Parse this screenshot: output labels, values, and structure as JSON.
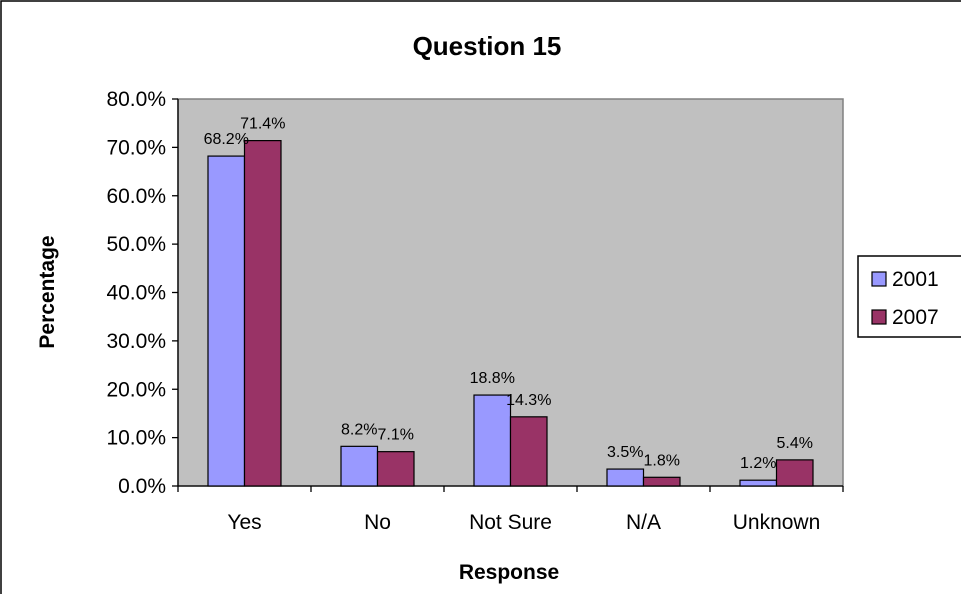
{
  "chart_data": {
    "type": "bar",
    "title": "Question 15",
    "xlabel": "Response",
    "ylabel": "Percentage",
    "categories": [
      "Yes",
      "No",
      "Not Sure",
      "N/A",
      "Unknown"
    ],
    "series": [
      {
        "name": "2001",
        "values": [
          68.2,
          8.2,
          18.8,
          3.5,
          1.2
        ],
        "labels": [
          "68.2%",
          "8.2%",
          "18.8%",
          "3.5%",
          "1.2%"
        ],
        "color": "#9999FF"
      },
      {
        "name": "2007",
        "values": [
          71.4,
          7.1,
          14.3,
          1.8,
          5.4
        ],
        "labels": [
          "71.4%",
          "7.1%",
          "14.3%",
          "1.8%",
          "5.4%"
        ],
        "color": "#993366"
      }
    ],
    "ylim": [
      0,
      80
    ],
    "yticks": [
      0,
      10,
      20,
      30,
      40,
      50,
      60,
      70,
      80
    ],
    "ytick_labels": [
      "0.0%",
      "10.0%",
      "20.0%",
      "30.0%",
      "40.0%",
      "50.0%",
      "60.0%",
      "70.0%",
      "80.0%"
    ],
    "plot_background": "#C0C0C0",
    "grid": false,
    "legend_position": "right"
  }
}
